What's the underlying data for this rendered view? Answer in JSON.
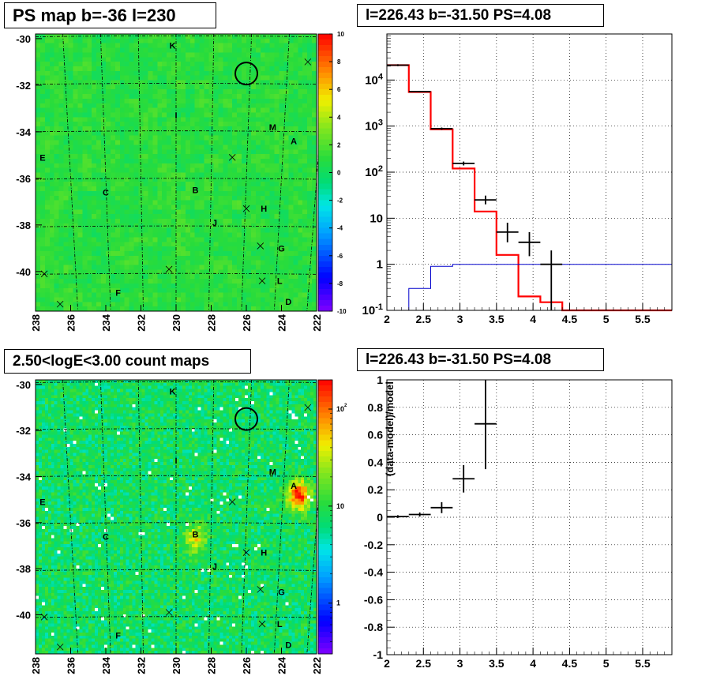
{
  "panels": {
    "top_left_title": "PS map b=-36 l=230",
    "top_right_title": "l=226.43 b=-31.50 PS=4.08",
    "bottom_left_title": "2.50<logE<3.00 count maps",
    "bottom_right_title": "l=226.43 b=-31.50 PS=4.08"
  },
  "colors": {
    "map_background": "#33d94a",
    "circle": "#000000",
    "model_line": "#ff0000",
    "background_line": "#0000cc",
    "data_points": "#000000",
    "grid": "#000000"
  },
  "chart_data": [
    {
      "type": "heatmap",
      "title": "PS map b=-36 l=230",
      "xlim": [
        238,
        222
      ],
      "ylim": [
        -41.7,
        -29.8
      ],
      "x_ticks": [
        238,
        236,
        234,
        232,
        230,
        228,
        226,
        224,
        222
      ],
      "y_ticks": [
        -30,
        -32,
        -34,
        -36,
        -38,
        -40
      ],
      "colorbar": {
        "scale": "linear",
        "range": [
          -10,
          10
        ],
        "ticks": [
          10,
          8,
          6,
          4,
          2,
          0,
          -2,
          -4,
          -6,
          -8,
          -10
        ]
      },
      "source_labels": [
        {
          "text": "K",
          "l": 230.2,
          "b": -30.3
        },
        {
          "text": "I",
          "l": 230.0,
          "b": -33.3
        },
        {
          "text": "M",
          "l": 224.5,
          "b": -33.8
        },
        {
          "text": "A",
          "l": 223.3,
          "b": -34.4
        },
        {
          "text": "E",
          "l": 237.6,
          "b": -35.1
        },
        {
          "text": "C",
          "l": 234.0,
          "b": -36.6
        },
        {
          "text": "B",
          "l": 228.9,
          "b": -36.5
        },
        {
          "text": "H",
          "l": 225.0,
          "b": -37.3
        },
        {
          "text": "J",
          "l": 227.8,
          "b": -37.9
        },
        {
          "text": "G",
          "l": 224.0,
          "b": -39.0
        },
        {
          "text": "L",
          "l": 224.1,
          "b": -40.4
        },
        {
          "text": "F",
          "l": 233.3,
          "b": -40.9
        },
        {
          "text": "D",
          "l": 223.6,
          "b": -41.3
        }
      ],
      "cross_markers": [
        {
          "l": 222.5,
          "b": -31.0
        },
        {
          "l": 226.8,
          "b": -35.1
        },
        {
          "l": 226.0,
          "b": -37.3
        },
        {
          "l": 225.2,
          "b": -38.9
        },
        {
          "l": 230.4,
          "b": -39.9
        },
        {
          "l": 225.1,
          "b": -40.4
        },
        {
          "l": 237.5,
          "b": -40.1
        },
        {
          "l": 236.6,
          "b": -41.4
        }
      ],
      "circle": {
        "l": 226.0,
        "b": -31.5,
        "radius_deg": 0.47
      }
    },
    {
      "type": "line",
      "title": "l=226.43 b=-31.50 PS=4.08",
      "xlim": [
        2,
        5.9
      ],
      "ylim": [
        0.1,
        100000
      ],
      "yscale": "log",
      "x_ticks": [
        2,
        2.5,
        3,
        3.5,
        4,
        4.5,
        5,
        5.5
      ],
      "y_tick_labels": [
        "10^-1",
        "1",
        "10",
        "10^2",
        "10^3",
        "10^4"
      ],
      "grid": true,
      "bin_edges": [
        2.0,
        2.3,
        2.6,
        2.9,
        3.2,
        3.5,
        3.8,
        4.1,
        4.4,
        4.7,
        5.0,
        5.3,
        5.6,
        5.9
      ],
      "series": [
        {
          "style": "step",
          "color": "red",
          "values": [
            21000,
            5500,
            850,
            120,
            14,
            1.6,
            0.2,
            0.15,
            0.1,
            0.1,
            0.1,
            0.1,
            0.1
          ]
        },
        {
          "style": "step",
          "color": "blue",
          "values": [
            0.08,
            0.3,
            0.9,
            1.0,
            1.0,
            1.0,
            1.0,
            1.0,
            1.0,
            1.0,
            1.0,
            1.0,
            1.0
          ]
        },
        {
          "style": "errorbar",
          "color": "black",
          "points": [
            {
              "x": 2.15,
              "y": 21000,
              "xerr": 0.15,
              "yerr": [
                20000,
                22000
              ]
            },
            {
              "x": 2.45,
              "y": 5600,
              "xerr": 0.15,
              "yerr": [
                5400,
                5800
              ]
            },
            {
              "x": 2.75,
              "y": 880,
              "xerr": 0.15,
              "yerr": [
                830,
                930
              ]
            },
            {
              "x": 3.05,
              "y": 155,
              "xerr": 0.15,
              "yerr": [
                140,
                170
              ]
            },
            {
              "x": 3.35,
              "y": 25,
              "xerr": 0.15,
              "yerr": [
                20,
                31
              ]
            },
            {
              "x": 3.65,
              "y": 5,
              "xerr": 0.15,
              "yerr": [
                3,
                8
              ]
            },
            {
              "x": 3.95,
              "y": 3,
              "xerr": 0.15,
              "yerr": [
                1.5,
                5
              ]
            },
            {
              "x": 4.25,
              "y": 1,
              "xerr": 0.15,
              "yerr": [
                0.1,
                2
              ]
            }
          ]
        }
      ]
    },
    {
      "type": "heatmap",
      "title": "2.50<logE<3.00 count maps",
      "xlim": [
        238,
        222
      ],
      "ylim": [
        -41.7,
        -29.8
      ],
      "x_ticks": [
        238,
        236,
        234,
        232,
        230,
        228,
        226,
        224,
        222
      ],
      "y_ticks": [
        -30,
        -32,
        -34,
        -36,
        -38,
        -40
      ],
      "colorbar": {
        "scale": "log",
        "range": [
          0.3,
          200
        ],
        "tick_labels": [
          "10^2",
          "10",
          "1"
        ]
      },
      "hotspots": [
        {
          "label": "A",
          "l": 223.0,
          "b": -34.8,
          "peak": 150
        },
        {
          "label": "B",
          "l": 228.9,
          "b": -36.7,
          "peak": 25
        }
      ]
    },
    {
      "type": "scatter",
      "title": "l=226.43 b=-31.50 PS=4.08",
      "ylabel": "(data-model)/model",
      "xlim": [
        2,
        5.9
      ],
      "ylim": [
        -1,
        1
      ],
      "x_ticks": [
        2,
        2.5,
        3,
        3.5,
        4,
        4.5,
        5,
        5.5
      ],
      "y_ticks": [
        1,
        0.8,
        0.6,
        0.4,
        0.2,
        0,
        -0.2,
        -0.4,
        -0.6,
        -0.8,
        -1
      ],
      "grid": true,
      "points": [
        {
          "x": 2.15,
          "y": 0.005,
          "xerr": 0.15,
          "yerr": 0.01
        },
        {
          "x": 2.45,
          "y": 0.02,
          "xerr": 0.15,
          "yerr": 0.015
        },
        {
          "x": 2.75,
          "y": 0.07,
          "xerr": 0.15,
          "yerr": 0.04
        },
        {
          "x": 3.05,
          "y": 0.28,
          "xerr": 0.15,
          "yerr": 0.1
        },
        {
          "x": 3.35,
          "y": 0.68,
          "xerr": 0.15,
          "yerr": 0.33
        }
      ]
    }
  ]
}
